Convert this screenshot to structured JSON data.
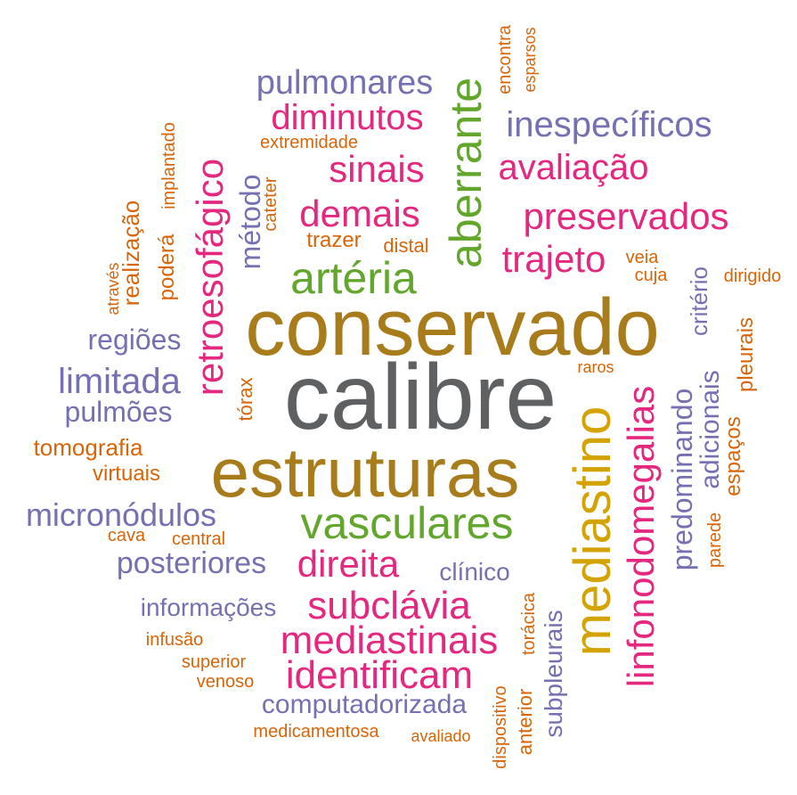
{
  "colors": {
    "gray": "#5f6062",
    "gold": "#a87c1a",
    "yellow": "#d4a300",
    "green": "#62a62c",
    "pink": "#e4287f",
    "purple": "#7470b2",
    "orange": "#d8650a"
  },
  "words": [
    {
      "text": "calibre",
      "color": "gray"
    },
    {
      "text": "conservado",
      "color": "gold"
    },
    {
      "text": "estruturas",
      "color": "gold"
    },
    {
      "text": "mediastino",
      "color": "yellow"
    },
    {
      "text": "vasculares",
      "color": "green"
    },
    {
      "text": "aberrante",
      "color": "green"
    },
    {
      "text": "artéria",
      "color": "green"
    },
    {
      "text": "linfonodomegalias",
      "color": "pink"
    },
    {
      "text": "retroesofágico",
      "color": "pink"
    },
    {
      "text": "preservados",
      "color": "pink"
    },
    {
      "text": "trajeto",
      "color": "pink"
    },
    {
      "text": "demais",
      "color": "pink"
    },
    {
      "text": "sinais",
      "color": "pink"
    },
    {
      "text": "diminutos",
      "color": "pink"
    },
    {
      "text": "avaliação",
      "color": "pink"
    },
    {
      "text": "direita",
      "color": "pink"
    },
    {
      "text": "subclávia",
      "color": "pink"
    },
    {
      "text": "mediastinais",
      "color": "pink"
    },
    {
      "text": "identificam",
      "color": "pink"
    },
    {
      "text": "pulmonares",
      "color": "purple"
    },
    {
      "text": "inespecíficos",
      "color": "purple"
    },
    {
      "text": "limitada",
      "color": "purple"
    },
    {
      "text": "regiões",
      "color": "purple"
    },
    {
      "text": "pulmões",
      "color": "purple"
    },
    {
      "text": "micronódulos",
      "color": "purple"
    },
    {
      "text": "posteriores",
      "color": "purple"
    },
    {
      "text": "informações",
      "color": "purple"
    },
    {
      "text": "clínico",
      "color": "purple"
    },
    {
      "text": "computadorizada",
      "color": "purple"
    },
    {
      "text": "método",
      "color": "purple"
    },
    {
      "text": "predominando",
      "color": "purple"
    },
    {
      "text": "adicionais",
      "color": "purple"
    },
    {
      "text": "critério",
      "color": "purple"
    },
    {
      "text": "subpleurais",
      "color": "purple"
    },
    {
      "text": "tórax",
      "color": "orange"
    },
    {
      "text": "tomografia",
      "color": "orange"
    },
    {
      "text": "virtuais",
      "color": "orange"
    },
    {
      "text": "cava",
      "color": "orange"
    },
    {
      "text": "central",
      "color": "orange"
    },
    {
      "text": "infusão",
      "color": "orange"
    },
    {
      "text": "superior",
      "color": "orange"
    },
    {
      "text": "venoso",
      "color": "orange"
    },
    {
      "text": "medicamentosa",
      "color": "orange"
    },
    {
      "text": "avaliado",
      "color": "orange"
    },
    {
      "text": "extremidade",
      "color": "orange"
    },
    {
      "text": "trazer",
      "color": "orange"
    },
    {
      "text": "distal",
      "color": "orange"
    },
    {
      "text": "veia",
      "color": "orange"
    },
    {
      "text": "cuja",
      "color": "orange"
    },
    {
      "text": "raros",
      "color": "orange"
    },
    {
      "text": "dirigido",
      "color": "orange"
    },
    {
      "text": "encontra",
      "color": "orange"
    },
    {
      "text": "esparsos",
      "color": "orange"
    },
    {
      "text": "implantado",
      "color": "orange"
    },
    {
      "text": "poderá",
      "color": "orange"
    },
    {
      "text": "realização",
      "color": "orange"
    },
    {
      "text": "através",
      "color": "orange"
    },
    {
      "text": "cateter",
      "color": "orange"
    },
    {
      "text": "pleurais",
      "color": "orange"
    },
    {
      "text": "espaços",
      "color": "orange"
    },
    {
      "text": "parede",
      "color": "orange"
    },
    {
      "text": "torácica",
      "color": "orange"
    },
    {
      "text": "dispositivo",
      "color": "orange"
    },
    {
      "text": "anterior",
      "color": "orange"
    }
  ]
}
